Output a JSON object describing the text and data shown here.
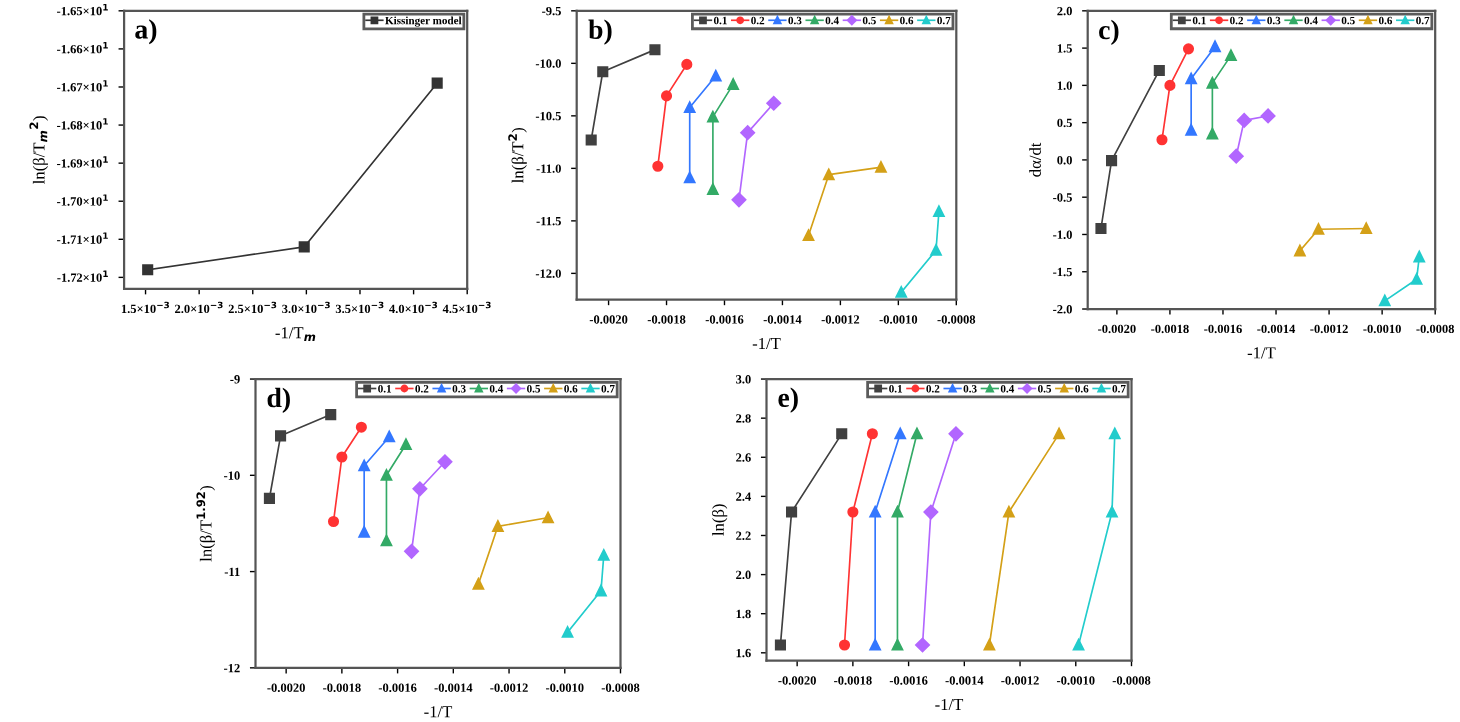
{
  "chart_data": [
    {
      "type": "line",
      "title": "a)",
      "xlabel": "-1/T$_{m}$",
      "ylabel": "ln(β/T$_{m}$$^{2}$)",
      "marker": "square",
      "legend": "top right",
      "grid": false,
      "xlim": [
        0.0013,
        0.0045
      ],
      "xticks": [
        {
          "value": 0.0015,
          "label": "1.5×10$^{−3}$"
        },
        {
          "value": 0.002,
          "label": "2.0×10$^{−3}$"
        },
        {
          "value": 0.0025,
          "label": "2.5×10$^{−3}$"
        },
        {
          "value": 0.003,
          "label": "3.0×10$^{−3}$"
        },
        {
          "value": 0.0035,
          "label": "3.5×10$^{−3}$"
        },
        {
          "value": 0.004,
          "label": "4.0×10$^{−3}$"
        },
        {
          "value": 0.0045,
          "label": "4.5×10$^{−3}$"
        }
      ],
      "ylim": [
        -17.23,
        -16.5
      ],
      "yticks": [
        {
          "value": -17.2,
          "label": "-1.72×10$^{1}$"
        },
        {
          "value": -17.1,
          "label": "-1.71×10$^{1}$"
        },
        {
          "value": -17.0,
          "label": "-1.70×10$^{1}$"
        },
        {
          "value": -16.9,
          "label": "-1.69×10$^{1}$"
        },
        {
          "value": -16.8,
          "label": "-1.68×10$^{1}$"
        },
        {
          "value": -16.7,
          "label": "-1.67×10$^{1}$"
        },
        {
          "value": -16.6,
          "label": "-1.66×10$^{1}$"
        },
        {
          "value": -16.5,
          "label": "-1.65×10$^{1}$"
        }
      ],
      "series": [
        {
          "name": "Kissinger model",
          "color": "#333333",
          "x": [
            0.00152,
            0.00298,
            0.00422
          ],
          "values": [
            -17.18,
            -17.12,
            -16.69
          ]
        }
      ]
    },
    {
      "type": "line",
      "title": "b)",
      "xlabel": "-1/T",
      "ylabel": "ln(β/T$^{2}$)",
      "legend": "top",
      "grid": false,
      "xlim": [
        -0.00211,
        -0.0008
      ],
      "xticks": [
        {
          "value": -0.002,
          "label": "-0.0020"
        },
        {
          "value": -0.0018,
          "label": "-0.0018"
        },
        {
          "value": -0.0016,
          "label": "-0.0016"
        },
        {
          "value": -0.0014,
          "label": "-0.0014"
        },
        {
          "value": -0.0012,
          "label": "-0.0012"
        },
        {
          "value": -0.001,
          "label": "-0.0010"
        },
        {
          "value": -0.0008,
          "label": "-0.0008"
        }
      ],
      "ylim": [
        -12.25,
        -9.5
      ],
      "yticks": [
        {
          "value": -12.0,
          "label": "-12.0"
        },
        {
          "value": -11.5,
          "label": "-11.5"
        },
        {
          "value": -11.0,
          "label": "-11.0"
        },
        {
          "value": -10.5,
          "label": "-10.5"
        },
        {
          "value": -10.0,
          "label": "-10.0"
        },
        {
          "value": -9.5,
          "label": "-9.5"
        }
      ],
      "series": [
        {
          "name": "0.1",
          "color": "#404040",
          "marker": "square",
          "x": [
            -0.00206,
            -0.00202,
            -0.00184
          ],
          "values": [
            -10.73,
            -10.08,
            -9.87
          ]
        },
        {
          "name": "0.2",
          "color": "#ff3333",
          "marker": "circle",
          "x": [
            -0.00183,
            -0.0018,
            -0.00173
          ],
          "values": [
            -10.98,
            -10.31,
            -10.01
          ]
        },
        {
          "name": "0.3",
          "color": "#3377ff",
          "marker": "triangle",
          "x": [
            -0.00172,
            -0.00172,
            -0.00163
          ],
          "values": [
            -11.09,
            -10.42,
            -10.12
          ]
        },
        {
          "name": "0.4",
          "color": "#33aa66",
          "marker": "triangle",
          "x": [
            -0.00164,
            -0.00164,
            -0.00157
          ],
          "values": [
            -11.2,
            -10.51,
            -10.2
          ]
        },
        {
          "name": "0.5",
          "color": "#b266ff",
          "marker": "diamond",
          "x": [
            -0.00155,
            -0.00152,
            -0.00143
          ],
          "values": [
            -11.3,
            -10.66,
            -10.38
          ]
        },
        {
          "name": "0.6",
          "color": "#d4a017",
          "marker": "triangle",
          "x": [
            -0.00131,
            -0.00124,
            -0.00106
          ],
          "values": [
            -11.64,
            -11.06,
            -10.99
          ]
        },
        {
          "name": "0.7",
          "color": "#22cccc",
          "marker": "triangle",
          "x": [
            -0.00099,
            -0.00087,
            -0.00086
          ],
          "values": [
            -12.18,
            -11.78,
            -11.41
          ]
        }
      ]
    },
    {
      "type": "line",
      "title": "c)",
      "xlabel": "-1/T",
      "ylabel": "dα/dt",
      "legend": "top",
      "grid": false,
      "xlim": [
        -0.00211,
        -0.0008
      ],
      "xticks": [
        {
          "value": -0.002,
          "label": "-0.0020"
        },
        {
          "value": -0.0018,
          "label": "-0.0018"
        },
        {
          "value": -0.0016,
          "label": "-0.0016"
        },
        {
          "value": -0.0014,
          "label": "-0.0014"
        },
        {
          "value": -0.0012,
          "label": "-0.0012"
        },
        {
          "value": -0.001,
          "label": "-0.0010"
        },
        {
          "value": -0.0008,
          "label": "-0.0008"
        }
      ],
      "ylim": [
        -2.0,
        2.0
      ],
      "yticks": [
        {
          "value": -2.0,
          "label": "-2.0"
        },
        {
          "value": -1.5,
          "label": "-1.5"
        },
        {
          "value": -1.0,
          "label": "-1.0"
        },
        {
          "value": -0.5,
          "label": "-0.5"
        },
        {
          "value": 0.0,
          "label": "0.0"
        },
        {
          "value": 0.5,
          "label": "0.5"
        },
        {
          "value": 1.0,
          "label": "1.0"
        },
        {
          "value": 1.5,
          "label": "1.5"
        },
        {
          "value": 2.0,
          "label": "2.0"
        }
      ],
      "series": [
        {
          "name": "0.1",
          "color": "#404040",
          "marker": "square",
          "x": [
            -0.00206,
            -0.00202,
            -0.00184
          ],
          "values": [
            -0.92,
            -0.01,
            1.2
          ]
        },
        {
          "name": "0.2",
          "color": "#ff3333",
          "marker": "circle",
          "x": [
            -0.00183,
            -0.0018,
            -0.00173
          ],
          "values": [
            0.27,
            1.0,
            1.49
          ]
        },
        {
          "name": "0.3",
          "color": "#3377ff",
          "marker": "triangle",
          "x": [
            -0.00172,
            -0.00172,
            -0.00163
          ],
          "values": [
            0.4,
            1.09,
            1.52
          ]
        },
        {
          "name": "0.4",
          "color": "#33aa66",
          "marker": "triangle",
          "x": [
            -0.00164,
            -0.00164,
            -0.00157
          ],
          "values": [
            0.35,
            1.03,
            1.4
          ]
        },
        {
          "name": "0.5",
          "color": "#b266ff",
          "marker": "diamond",
          "x": [
            -0.00155,
            -0.00152,
            -0.00143
          ],
          "values": [
            0.05,
            0.53,
            0.59
          ]
        },
        {
          "name": "0.6",
          "color": "#d4a017",
          "marker": "triangle",
          "x": [
            -0.00131,
            -0.00124,
            -0.00106
          ],
          "values": [
            -1.22,
            -0.93,
            -0.92
          ]
        },
        {
          "name": "0.7",
          "color": "#22cccc",
          "marker": "triangle",
          "x": [
            -0.00099,
            -0.00087,
            -0.00086
          ],
          "values": [
            -1.89,
            -1.6,
            -1.3
          ]
        }
      ]
    },
    {
      "type": "line",
      "title": "d)",
      "xlabel": "-1/T",
      "ylabel": "ln(β/T$^{1.92}$)",
      "legend": "top",
      "grid": false,
      "xlim": [
        -0.00211,
        -0.0008
      ],
      "xticks": [
        {
          "value": -0.002,
          "label": "-0.0020"
        },
        {
          "value": -0.0018,
          "label": "-0.0018"
        },
        {
          "value": -0.0016,
          "label": "-0.0016"
        },
        {
          "value": -0.0014,
          "label": "-0.0014"
        },
        {
          "value": -0.0012,
          "label": "-0.0012"
        },
        {
          "value": -0.001,
          "label": "-0.0010"
        },
        {
          "value": -0.0008,
          "label": "-0.0008"
        }
      ],
      "ylim": [
        -12,
        -9
      ],
      "yticks": [
        -12,
        -11,
        -10,
        -9
      ],
      "series": [
        {
          "name": "0.1",
          "color": "#404040",
          "marker": "square",
          "x": [
            -0.00206,
            -0.00202,
            -0.00184
          ],
          "values": [
            -10.24,
            -9.59,
            -9.37
          ]
        },
        {
          "name": "0.2",
          "color": "#ff3333",
          "marker": "circle",
          "x": [
            -0.00183,
            -0.0018,
            -0.00173
          ],
          "values": [
            -10.48,
            -9.81,
            -9.5
          ]
        },
        {
          "name": "0.3",
          "color": "#3377ff",
          "marker": "triangle",
          "x": [
            -0.00172,
            -0.00172,
            -0.00163
          ],
          "values": [
            -10.59,
            -9.9,
            -9.6
          ]
        },
        {
          "name": "0.4",
          "color": "#33aa66",
          "marker": "triangle",
          "x": [
            -0.00164,
            -0.00164,
            -0.00157
          ],
          "values": [
            -10.68,
            -10.0,
            -9.68
          ]
        },
        {
          "name": "0.5",
          "color": "#b266ff",
          "marker": "diamond",
          "x": [
            -0.00155,
            -0.00152,
            -0.00143
          ],
          "values": [
            -10.79,
            -10.14,
            -9.86
          ]
        },
        {
          "name": "0.6",
          "color": "#d4a017",
          "marker": "triangle",
          "x": [
            -0.00131,
            -0.00124,
            -0.00106
          ],
          "values": [
            -11.13,
            -10.53,
            -10.44
          ]
        },
        {
          "name": "0.7",
          "color": "#22cccc",
          "marker": "triangle",
          "x": [
            -0.00099,
            -0.00087,
            -0.00086
          ],
          "values": [
            -11.63,
            -11.2,
            -10.83
          ]
        }
      ]
    },
    {
      "type": "line",
      "title": "e)",
      "xlabel": "-1/T",
      "ylabel": "ln(β)",
      "legend": "top",
      "grid": false,
      "xlim": [
        -0.00211,
        -0.0008
      ],
      "xticks": [
        {
          "value": -0.002,
          "label": "-0.0020"
        },
        {
          "value": -0.0018,
          "label": "-0.0018"
        },
        {
          "value": -0.0016,
          "label": "-0.0016"
        },
        {
          "value": -0.0014,
          "label": "-0.0014"
        },
        {
          "value": -0.0012,
          "label": "-0.0012"
        },
        {
          "value": -0.001,
          "label": "-0.0010"
        },
        {
          "value": -0.0008,
          "label": "-0.0008"
        }
      ],
      "ylim": [
        1.56,
        3.0
      ],
      "yticks": [
        {
          "value": 1.6,
          "label": "1.6"
        },
        {
          "value": 1.8,
          "label": "1.8"
        },
        {
          "value": 2.0,
          "label": "2.0"
        },
        {
          "value": 2.2,
          "label": "2.2"
        },
        {
          "value": 2.4,
          "label": "2.4"
        },
        {
          "value": 2.6,
          "label": "2.6"
        },
        {
          "value": 2.8,
          "label": "2.8"
        },
        {
          "value": 3.0,
          "label": "3.0"
        }
      ],
      "series": [
        {
          "name": "0.1",
          "color": "#404040",
          "marker": "square",
          "x": [
            -0.00206,
            -0.00202,
            -0.00184
          ],
          "values": [
            1.64,
            2.32,
            2.72
          ]
        },
        {
          "name": "0.2",
          "color": "#ff3333",
          "marker": "circle",
          "x": [
            -0.00183,
            -0.0018,
            -0.00173
          ],
          "values": [
            1.64,
            2.32,
            2.72
          ]
        },
        {
          "name": "0.3",
          "color": "#3377ff",
          "marker": "triangle",
          "x": [
            -0.00172,
            -0.00172,
            -0.00163
          ],
          "values": [
            1.64,
            2.32,
            2.72
          ]
        },
        {
          "name": "0.4",
          "color": "#33aa66",
          "marker": "triangle",
          "x": [
            -0.00164,
            -0.00164,
            -0.00157
          ],
          "values": [
            1.64,
            2.32,
            2.72
          ]
        },
        {
          "name": "0.5",
          "color": "#b266ff",
          "marker": "diamond",
          "x": [
            -0.00155,
            -0.00152,
            -0.00143
          ],
          "values": [
            1.64,
            2.32,
            2.72
          ]
        },
        {
          "name": "0.6",
          "color": "#d4a017",
          "marker": "triangle",
          "x": [
            -0.00131,
            -0.00124,
            -0.00106
          ],
          "values": [
            1.64,
            2.32,
            2.72
          ]
        },
        {
          "name": "0.7",
          "color": "#22cccc",
          "marker": "triangle",
          "x": [
            -0.00099,
            -0.00087,
            -0.00086
          ],
          "values": [
            1.64,
            2.32,
            2.72
          ]
        }
      ]
    }
  ]
}
